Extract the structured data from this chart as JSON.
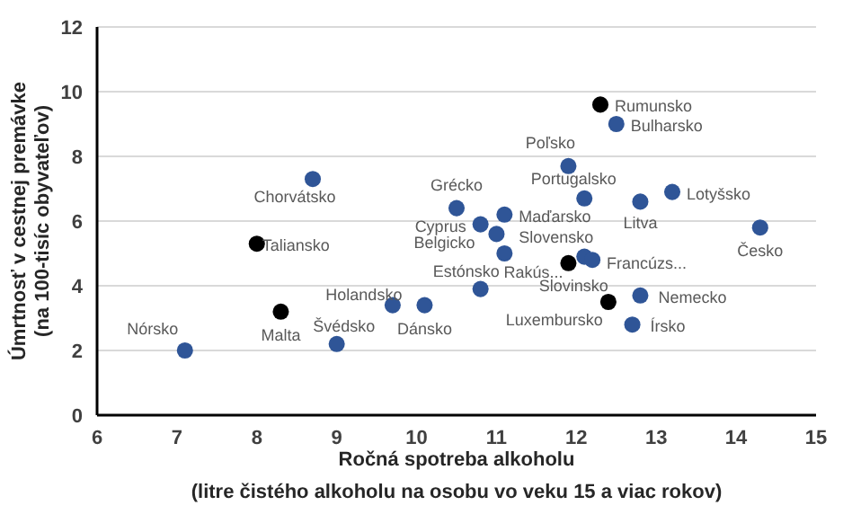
{
  "chart_data": {
    "type": "scatter",
    "xlabel": "Ročná spotreba alkoholu (litre čistého alkoholu na osobu vo veku 15 a viac rokov)",
    "ylabel": "Úmrtnosť v cestnej premávke (na 100-tisíc obyvateľov)",
    "xlim": [
      6,
      15
    ],
    "xticks": [
      6,
      7,
      8,
      9,
      10,
      11,
      12,
      13,
      14,
      15
    ],
    "ylim": [
      0,
      12
    ],
    "yticks": [
      0,
      2,
      4,
      6,
      8,
      10,
      12
    ],
    "grid": "y",
    "marker": "circle",
    "series": [
      {
        "color": "#2f5597",
        "x": [
          12.5,
          11.9,
          12.1,
          12.8,
          13.2,
          14.3,
          8.7,
          10.5,
          11.1,
          10.8,
          11.0,
          11.1,
          12.1,
          12.2,
          10.8,
          9.7,
          10.1,
          9.0,
          7.1,
          12.8,
          12.7
        ],
        "values": [
          9.0,
          7.7,
          6.7,
          6.6,
          6.9,
          5.8,
          7.3,
          6.4,
          6.2,
          5.9,
          5.6,
          5.0,
          4.9,
          4.8,
          3.9,
          3.4,
          3.4,
          2.2,
          2.0,
          3.7,
          2.8
        ]
      },
      {
        "color": "#000000",
        "x": [
          12.3,
          8.0,
          11.9,
          8.3,
          12.4
        ],
        "values": [
          9.6,
          5.3,
          4.7,
          3.2,
          3.5
        ]
      }
    ],
    "annotations": [
      {
        "text": "Rumunsko",
        "x": 12.3,
        "y": 9.6
      },
      {
        "text": "Bulharsko",
        "x": 12.5,
        "y": 9.0
      },
      {
        "text": "Poľsko",
        "x": 11.9,
        "y": 7.7
      },
      {
        "text": "Portugalsko",
        "x": 12.1,
        "y": 6.7
      },
      {
        "text": "Litva",
        "x": 12.8,
        "y": 6.6
      },
      {
        "text": "Lotyšsko",
        "x": 13.2,
        "y": 6.9
      },
      {
        "text": "Česko",
        "x": 14.3,
        "y": 5.8
      },
      {
        "text": "Chorvátsko",
        "x": 8.7,
        "y": 7.3
      },
      {
        "text": "Grécko",
        "x": 10.5,
        "y": 6.4
      },
      {
        "text": "Maďarsko",
        "x": 11.1,
        "y": 6.2
      },
      {
        "text": "Cyprus",
        "x": 10.8,
        "y": 5.9
      },
      {
        "text": "Belgicko",
        "x": 11.0,
        "y": 5.6
      },
      {
        "text": "Slovensko",
        "x": 11.1,
        "y": 5.0
      },
      {
        "text": "Taliansko",
        "x": 8.0,
        "y": 5.3
      },
      {
        "text": "Rakús...",
        "x": 11.9,
        "y": 4.7
      },
      {
        "text": "Slovinsko",
        "x": 12.1,
        "y": 4.9
      },
      {
        "text": "Francúzs...",
        "x": 12.2,
        "y": 4.8
      },
      {
        "text": "Estónsko",
        "x": 10.8,
        "y": 3.9
      },
      {
        "text": "Holandsko",
        "x": 9.7,
        "y": 3.4
      },
      {
        "text": "Dánsko",
        "x": 10.1,
        "y": 3.4
      },
      {
        "text": "Malta",
        "x": 8.3,
        "y": 3.2
      },
      {
        "text": "Švédsko",
        "x": 9.0,
        "y": 2.2
      },
      {
        "text": "Nórsko",
        "x": 7.1,
        "y": 2.0
      },
      {
        "text": "Luxembursko",
        "x": 12.4,
        "y": 3.5
      },
      {
        "text": "Nemecko",
        "x": 12.8,
        "y": 3.7
      },
      {
        "text": "Írsko",
        "x": 12.7,
        "y": 2.8
      }
    ]
  }
}
